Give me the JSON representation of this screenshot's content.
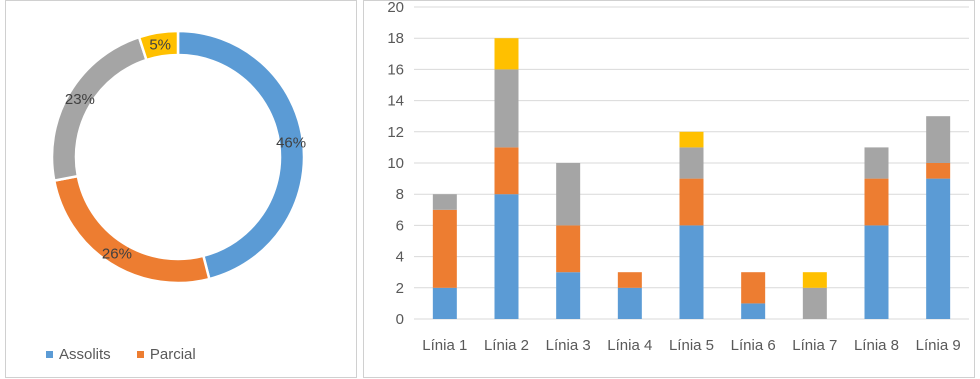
{
  "chart_data": [
    {
      "type": "pie",
      "donut": true,
      "slices": [
        {
          "value": 46,
          "label": "46%",
          "color": "#5b9bd5"
        },
        {
          "value": 26,
          "label": "26%",
          "color": "#ed7d31"
        },
        {
          "value": 23,
          "label": "23%",
          "color": "#a5a5a5"
        },
        {
          "value": 5,
          "label": "5%",
          "color": "#ffc000"
        }
      ],
      "legend": {
        "position": "bottom",
        "items": [
          {
            "name": "Assolits",
            "color": "#5b9bd5"
          },
          {
            "name": "Parcial",
            "color": "#ed7d31"
          }
        ]
      }
    },
    {
      "type": "bar",
      "stacked": true,
      "categories": [
        "Línia 1",
        "Línia 2",
        "Línia 3",
        "Línia 4",
        "Línia 5",
        "Línia 6",
        "Línia 7",
        "Línia 8",
        "Línia 9"
      ],
      "series": [
        {
          "color": "#5b9bd5",
          "values": [
            2,
            8,
            3,
            2,
            6,
            1,
            0,
            6,
            9
          ]
        },
        {
          "color": "#ed7d31",
          "values": [
            5,
            3,
            3,
            1,
            3,
            2,
            0,
            3,
            1
          ]
        },
        {
          "color": "#a5a5a5",
          "values": [
            1,
            5,
            4,
            0,
            2,
            0,
            2,
            2,
            3
          ]
        },
        {
          "color": "#ffc000",
          "values": [
            0,
            2,
            0,
            0,
            1,
            0,
            1,
            0,
            0
          ]
        }
      ],
      "ylim": [
        0,
        20
      ],
      "yticks": [
        0,
        2,
        4,
        6,
        8,
        10,
        12,
        14,
        16,
        18,
        20
      ],
      "grid": true
    }
  ]
}
